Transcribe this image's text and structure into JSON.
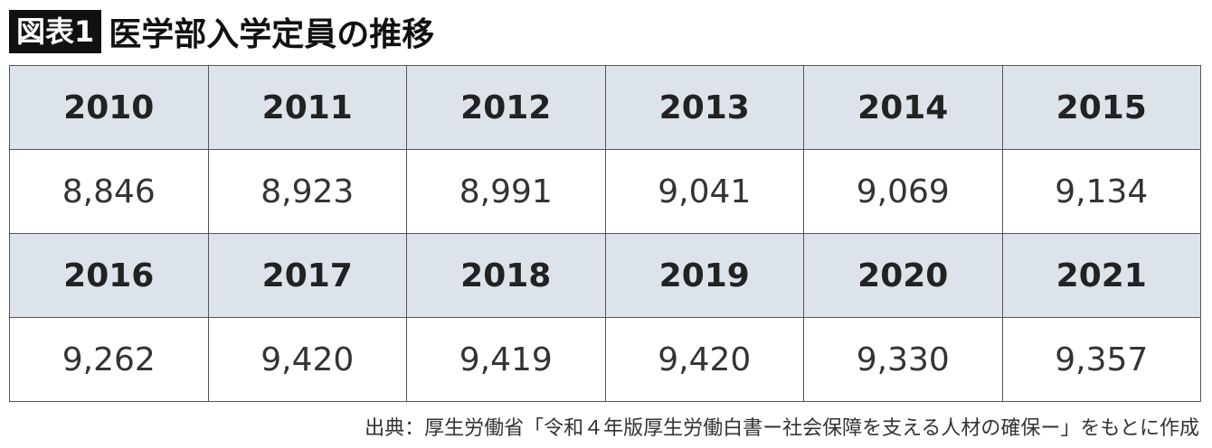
{
  "header": {
    "label": "図表1",
    "title": "医学部入学定員の推移"
  },
  "table": {
    "rows": [
      [
        "2010",
        "2011",
        "2012",
        "2013",
        "2014",
        "2015"
      ],
      [
        "8,846",
        "8,923",
        "8,991",
        "9,041",
        "9,069",
        "9,134"
      ],
      [
        "2016",
        "2017",
        "2018",
        "2019",
        "2020",
        "2021"
      ],
      [
        "9,262",
        "9,420",
        "9,419",
        "9,420",
        "9,330",
        "9,357"
      ]
    ]
  },
  "source": "出典：厚生労働省「令和４年版厚生労働白書ー社会保障を支える人材の確保ー」をもとに作成"
}
